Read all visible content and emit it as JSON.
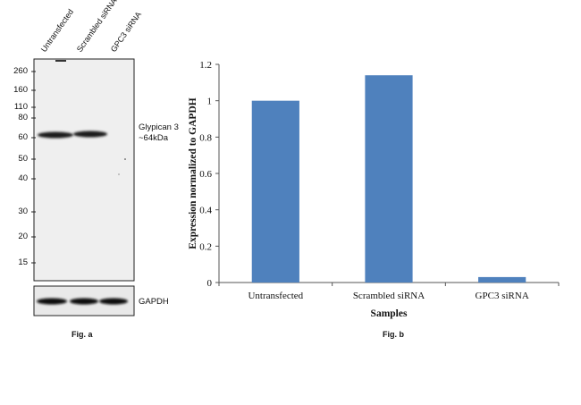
{
  "fig_a": {
    "caption": "Fig. a",
    "lanes": [
      "Untransfected",
      "Scrambled siRNA",
      "GPC3 siRNA"
    ],
    "mw_markers": [
      "260",
      "160",
      "110",
      "80",
      "60",
      "50",
      "40",
      "30",
      "20",
      "15"
    ],
    "target_label_line1": "Glypican 3",
    "target_label_line2": "~64kDa",
    "loading_label": "GAPDH"
  },
  "chart_data": {
    "type": "bar",
    "caption": "Fig. b",
    "categories": [
      "Untransfected",
      "Scrambled siRNA",
      "GPC3 siRNA"
    ],
    "values": [
      1.0,
      1.14,
      0.03
    ],
    "xlabel": "Samples",
    "ylabel": "Expression normalized to GAPDH",
    "ylim": [
      0,
      1.2
    ],
    "yticks": [
      0,
      0.2,
      0.4,
      0.6,
      0.8,
      1,
      1.2
    ],
    "bar_color": "#4F81BD",
    "grid": false,
    "legend": "none"
  }
}
